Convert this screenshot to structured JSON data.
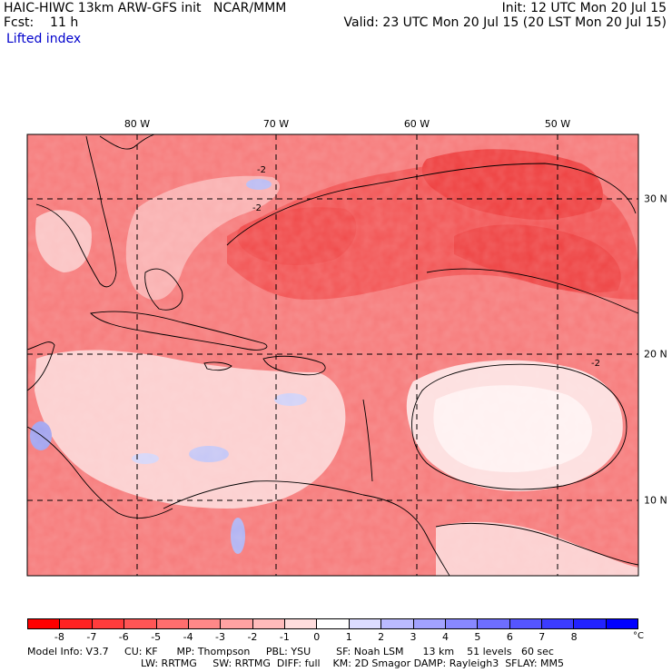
{
  "header": {
    "title": "HAIC-HIWC 13km ARW-GFS init   NCAR/MMM",
    "init": "Init: 12 UTC Mon 20 Jul 15",
    "forecast": "Fcst:    11 h",
    "valid": "Valid: 23 UTC Mon 20 Jul 15 (20 LST Mon 20 Jul 15)",
    "field": "Lifted index"
  },
  "map": {
    "longitude_labels": [
      "80 W",
      "70 W",
      "60 W",
      "50 W"
    ],
    "latitude_labels": [
      "30 N",
      "20 N",
      "10 N"
    ],
    "contour_label": "-2",
    "palette": {
      "strong_red": "#ee3030",
      "red": "#f45b5b",
      "light_red": "#f88a8a",
      "pink": "#fbb7b7",
      "pale_pink": "#fddede",
      "white": "#ffffff",
      "pale_blue": "#cfd0f7",
      "blue": "#9a9cf0",
      "contour": "#000000",
      "grid": "#000000"
    }
  },
  "colorbar": {
    "ticks": [
      "-8",
      "-7",
      "-6",
      "-5",
      "-4",
      "-3",
      "-2",
      "-1",
      "0",
      "1",
      "2",
      "3",
      "4",
      "5",
      "6",
      "7",
      "8"
    ],
    "unit": "°C",
    "colors": [
      "#ff0000",
      "#ff2222",
      "#ff3c3c",
      "#ff5555",
      "#ff6e6e",
      "#ff8888",
      "#ffa2a2",
      "#ffbbbb",
      "#ffdddd",
      "#ffffff",
      "#dcdcff",
      "#bbbbff",
      "#a2a2ff",
      "#8888ff",
      "#6e6eff",
      "#5555ff",
      "#3c3cff",
      "#2222ff",
      "#0000ff"
    ]
  },
  "footer": {
    "line1": "Model Info: V3.7     CU: KF      MP: Thompson     PBL: YSU        SF: Noah LSM      13 km    51 levels   60 sec",
    "line2": "LW: RRTMG     SW: RRTMG  DIFF: full    KM: 2D Smagor DAMP: Rayleigh3  SFLAY: MM5"
  }
}
